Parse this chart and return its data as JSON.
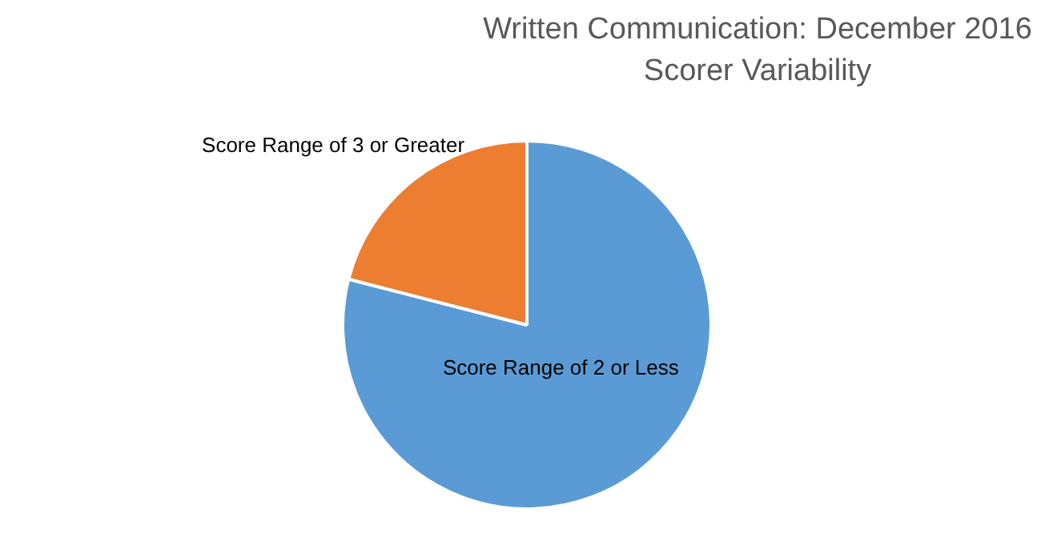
{
  "chart_data": {
    "type": "pie",
    "title": "Written Communication: December 2016",
    "subtitle": "Scorer Variability",
    "categories": [
      "Score Range of 2 or Less",
      "Score Range of 3 or Greater"
    ],
    "values": [
      79,
      21
    ],
    "colors": [
      "#5b9bd5",
      "#ed7d31"
    ],
    "legend": false
  }
}
